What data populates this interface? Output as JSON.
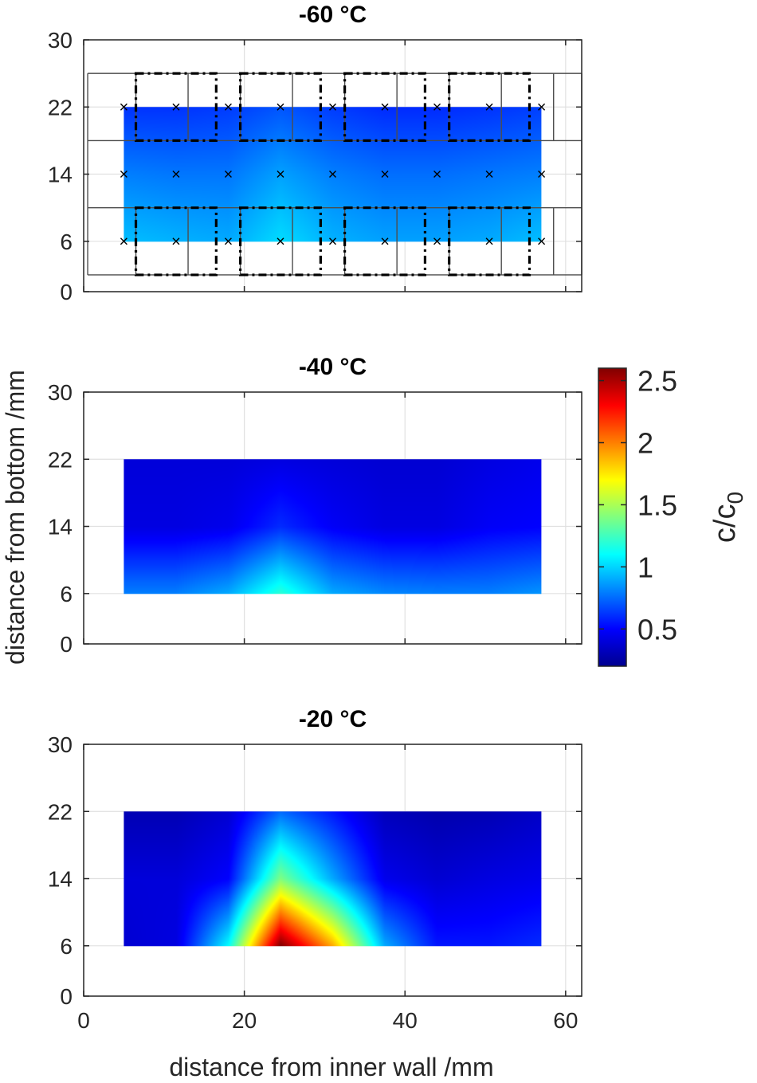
{
  "chart_data": [
    {
      "type": "heatmap",
      "title": "-60 °C",
      "x": [
        5,
        11.5,
        18,
        24.5,
        31,
        37.5,
        44,
        50.5,
        57
      ],
      "y": [
        6,
        14,
        22
      ],
      "z": [
        [
          0.95,
          0.92,
          0.9,
          1.02,
          0.92,
          0.88,
          0.88,
          0.9,
          0.95
        ],
        [
          0.8,
          0.78,
          0.78,
          0.88,
          0.8,
          0.76,
          0.76,
          0.78,
          0.8
        ],
        [
          0.62,
          0.62,
          0.64,
          0.7,
          0.64,
          0.6,
          0.6,
          0.62,
          0.65
        ]
      ],
      "markers": true,
      "xlim": [
        0,
        62
      ],
      "ylim": [
        0,
        30
      ],
      "xticks": [
        0,
        20,
        40,
        60
      ],
      "yticks": [
        0,
        6,
        14,
        22,
        30
      ],
      "ytick_labels": [
        "0",
        "6",
        "14",
        "22",
        "30"
      ]
    },
    {
      "type": "heatmap",
      "title": "-40 °C",
      "x": [
        5,
        11.5,
        18,
        24.5,
        31,
        37.5,
        44,
        50.5,
        57
      ],
      "y": [
        6,
        14,
        22
      ],
      "z": [
        [
          0.8,
          0.8,
          0.9,
          1.2,
          0.9,
          0.82,
          0.8,
          0.8,
          0.85
        ],
        [
          0.42,
          0.42,
          0.45,
          0.6,
          0.48,
          0.42,
          0.42,
          0.48,
          0.5
        ],
        [
          0.4,
          0.4,
          0.4,
          0.42,
          0.4,
          0.38,
          0.38,
          0.42,
          0.45
        ]
      ],
      "xlim": [
        0,
        62
      ],
      "ylim": [
        0,
        30
      ],
      "xticks": [
        0,
        20,
        40,
        60
      ],
      "yticks": [
        0,
        6,
        14,
        22,
        30
      ],
      "ytick_labels": [
        "0",
        "6",
        "14",
        "22",
        "30"
      ]
    },
    {
      "type": "heatmap",
      "title": "-20 °C",
      "x": [
        5,
        11.5,
        18,
        24.5,
        31,
        37.5,
        44,
        50.5,
        57
      ],
      "y": [
        6,
        14,
        22
      ],
      "z": [
        [
          0.38,
          0.42,
          1.1,
          2.6,
          1.9,
          0.9,
          0.55,
          0.55,
          0.6
        ],
        [
          0.4,
          0.4,
          0.5,
          1.4,
          0.9,
          0.45,
          0.38,
          0.42,
          0.45
        ],
        [
          0.3,
          0.3,
          0.38,
          0.75,
          0.55,
          0.32,
          0.28,
          0.3,
          0.35
        ]
      ],
      "xlim": [
        0,
        62
      ],
      "ylim": [
        0,
        30
      ],
      "xticks": [
        0,
        20,
        40,
        60
      ],
      "yticks": [
        0,
        6,
        14,
        22,
        30
      ],
      "ytick_labels": [
        "0",
        "6",
        "14",
        "22",
        "30"
      ]
    }
  ],
  "xlabel": "distance from inner wall /mm",
  "ylabel": "distance from bottom /mm",
  "colorbar": {
    "label_main": "c/c",
    "label_sub": "0",
    "range": [
      0.2,
      2.6
    ],
    "ticks": [
      0.5,
      1,
      1.5,
      2,
      2.5
    ],
    "tick_labels": [
      "0.5",
      "1",
      "1.5",
      "2",
      "2.5"
    ],
    "colormap": "jet"
  },
  "overlay_grid": {
    "row_boundaries": [
      2,
      10,
      18,
      26
    ],
    "column_boundaries": [
      0.5,
      6.5,
      13,
      19.5,
      26,
      32.5,
      39,
      45.5,
      52,
      58.5,
      62
    ],
    "dash_rects": [
      [
        6.5,
        16.5
      ],
      [
        19.5,
        29.5
      ],
      [
        32.5,
        42.5
      ],
      [
        45.5,
        55.5
      ]
    ],
    "dash_rows": [
      [
        2,
        10
      ],
      [
        18,
        26
      ]
    ]
  }
}
